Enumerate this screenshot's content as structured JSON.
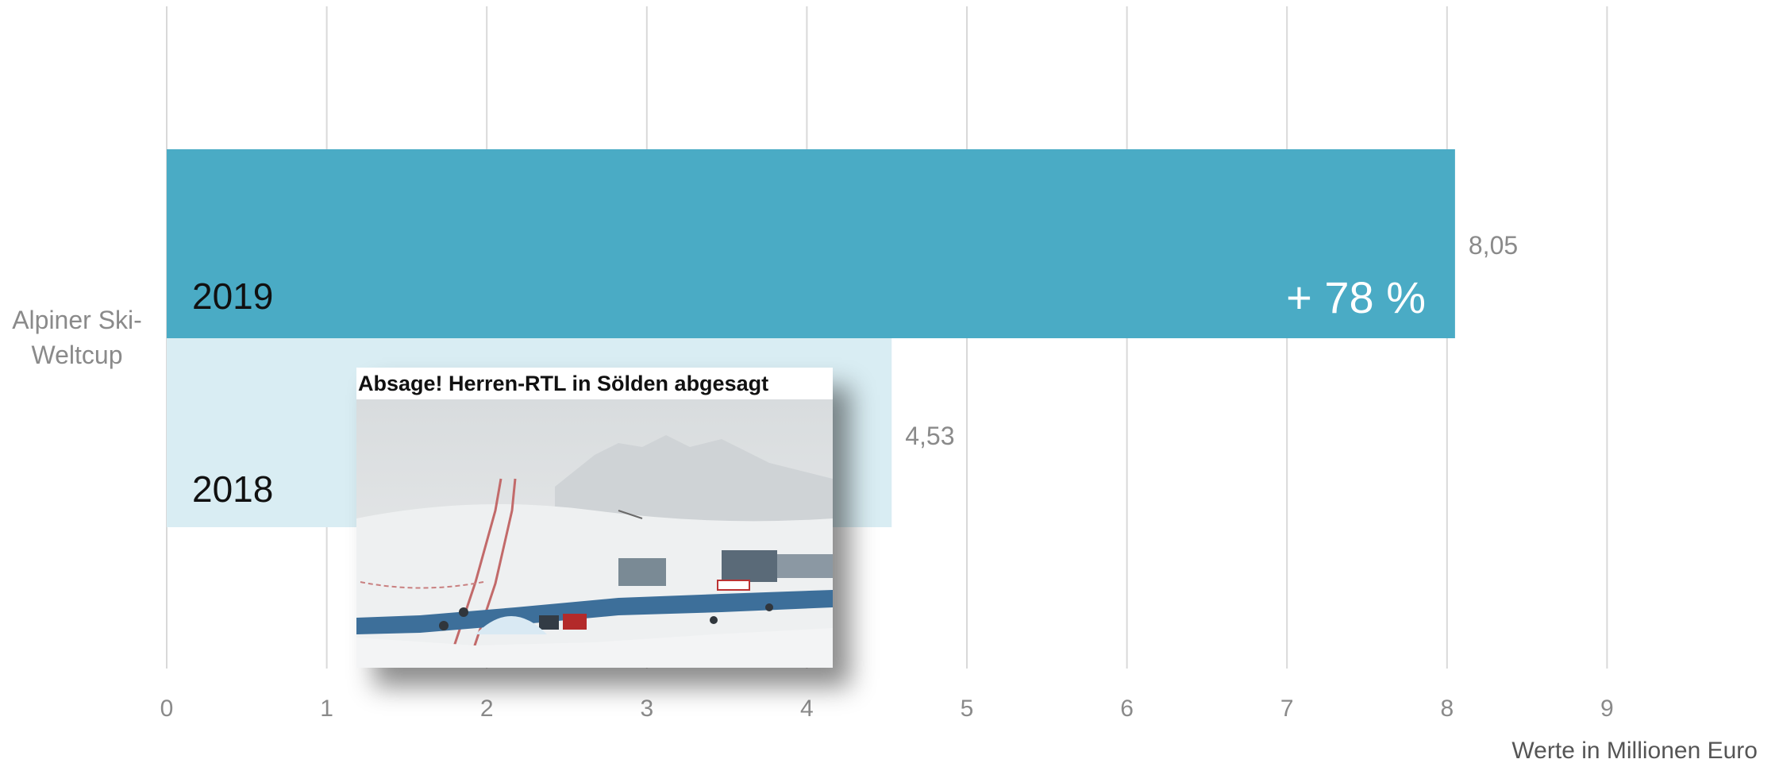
{
  "chart_data": {
    "type": "bar",
    "orientation": "horizontal",
    "categories": [
      "Alpiner Ski-\nWeltcup"
    ],
    "category_lines": [
      "Alpiner Ski-",
      "Weltcup"
    ],
    "series": [
      {
        "name": "2019",
        "values": [
          8.05
        ],
        "value_label": "8,05",
        "change_label": "+ 78 %",
        "color": "#4aabc5"
      },
      {
        "name": "2018",
        "values": [
          4.53
        ],
        "value_label": "4,53",
        "color": "#d9edf3"
      }
    ],
    "xlim": [
      0,
      9
    ],
    "x_ticks": [
      "0",
      "1",
      "2",
      "3",
      "4",
      "5",
      "6",
      "7",
      "8",
      "9"
    ],
    "xlabel": "Werte in Millionen Euro",
    "grid": true,
    "colors": {
      "grid": "#d9d9d9",
      "tick_text": "#8a8a8a"
    }
  },
  "news_card": {
    "headline": "Absage! Herren-RTL in Sölden abgesagt"
  }
}
